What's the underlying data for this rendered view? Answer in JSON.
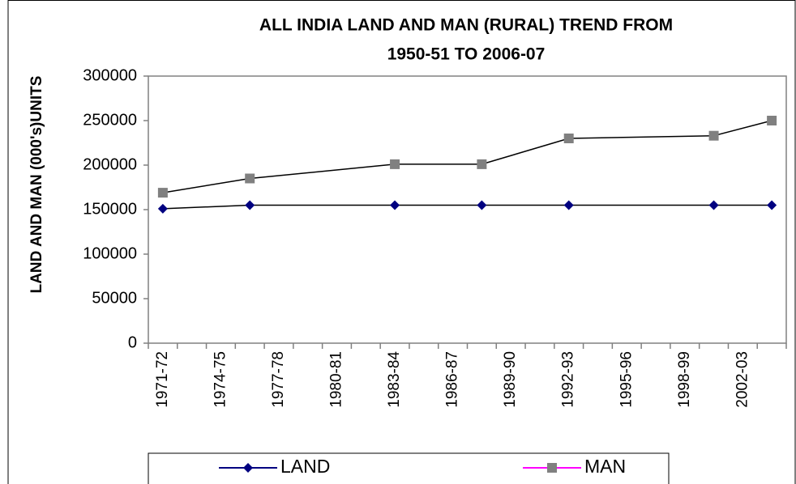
{
  "chart_data": {
    "type": "line",
    "title": "ALL INDIA LAND AND MAN (RURAL) TREND  FROM",
    "subtitle": "1950-51 TO 2006-07",
    "y_axis_label": "LAND AND MAN (000's)UNITS",
    "categories": [
      "1971-72",
      null,
      "1974-75",
      null,
      "1977-78",
      null,
      "1980-81",
      null,
      "1983-84",
      null,
      "1986-87",
      null,
      "1989-90",
      null,
      "1992-93",
      null,
      "1995-96",
      null,
      "1998-99",
      null,
      "2002-03",
      null
    ],
    "series": [
      {
        "name": "LAND",
        "color": "#000080",
        "line_color": "#000000",
        "marker": "diamond",
        "values": [
          151000,
          null,
          null,
          155000,
          null,
          null,
          null,
          null,
          155000,
          null,
          null,
          155000,
          null,
          null,
          155000,
          null,
          null,
          null,
          null,
          155000,
          null,
          155000
        ]
      },
      {
        "name": "MAN",
        "color": "#808080",
        "line_color": "#000000",
        "legend_line_color": "#ff00ff",
        "marker": "square",
        "values": [
          169000,
          null,
          null,
          185000,
          null,
          null,
          null,
          null,
          201000,
          null,
          null,
          201000,
          null,
          null,
          230000,
          null,
          null,
          null,
          null,
          233000,
          null,
          250000
        ]
      }
    ],
    "ylim": [
      0,
      300000
    ],
    "yticks": [
      0,
      50000,
      100000,
      150000,
      200000,
      250000,
      300000
    ],
    "grid": false,
    "legend_position": "bottom"
  }
}
